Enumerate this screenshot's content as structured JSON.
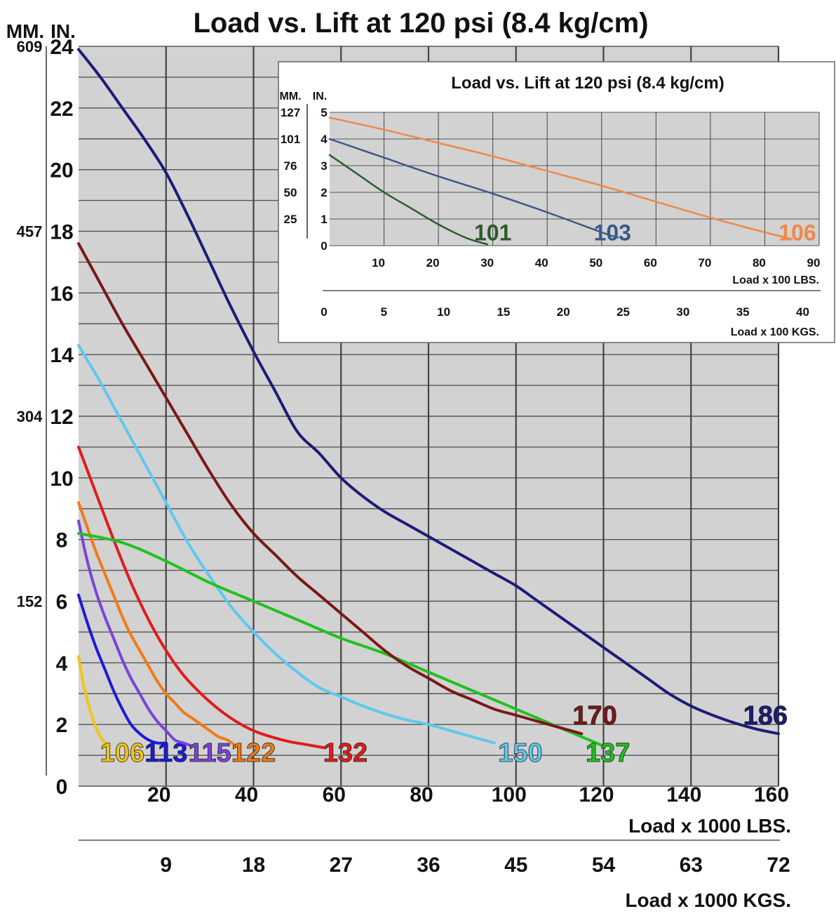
{
  "chart_data": [
    {
      "type": "line",
      "title": "Load vs. Lift at 120 psi (8.4 kg/cm)",
      "ylabel_in": "IN.",
      "ylabel_mm": "MM.",
      "xlabel_lbs": "Load x 1000 LBS.",
      "xlabel_kgs": "Load x 1000 KGS.",
      "xlim": [
        0,
        160
      ],
      "ylim": [
        0,
        24
      ],
      "grid": true,
      "y_ticks": [
        "0",
        "2",
        "4",
        "6",
        "8",
        "10",
        "12",
        "14",
        "16",
        "18",
        "20",
        "22",
        "24"
      ],
      "mm_ticks": [
        {
          "label": "609",
          "y": 24
        },
        {
          "label": "457",
          "y": 18
        },
        {
          "label": "304",
          "y": 12
        },
        {
          "label": "152",
          "y": 6
        }
      ],
      "x_ticks_lbs": [
        "20",
        "40",
        "60",
        "80",
        "100",
        "120",
        "140",
        "160"
      ],
      "x_ticks_kgs": [
        {
          "label": "9",
          "x": 20
        },
        {
          "label": "18",
          "x": 40
        },
        {
          "label": "27",
          "x": 60
        },
        {
          "label": "36",
          "x": 80
        },
        {
          "label": "45",
          "x": 100
        },
        {
          "label": "54",
          "x": 120
        },
        {
          "label": "63",
          "x": 140
        },
        {
          "label": "72",
          "x": 160
        }
      ],
      "series": [
        {
          "name": "106",
          "color": "#f2c418",
          "label_at": [
            10,
            0.8
          ],
          "x": [
            0,
            1,
            2,
            3,
            4,
            5,
            6,
            7
          ],
          "y": [
            4.2,
            3.4,
            2.8,
            2.3,
            1.9,
            1.6,
            1.4,
            1.3
          ]
        },
        {
          "name": "113",
          "color": "#1a1adf",
          "label_at": [
            20,
            0.8
          ],
          "x": [
            0,
            2,
            4,
            6,
            8,
            10,
            12,
            14,
            16,
            18,
            20
          ],
          "y": [
            6.2,
            5.3,
            4.5,
            3.8,
            3.1,
            2.5,
            2.0,
            1.7,
            1.5,
            1.4,
            1.4
          ]
        },
        {
          "name": "115",
          "color": "#7b43d9",
          "label_at": [
            30,
            0.8
          ],
          "x": [
            0,
            2,
            4,
            6,
            8,
            10,
            12,
            14,
            16,
            18,
            20,
            22,
            24,
            26
          ],
          "y": [
            8.6,
            7.3,
            6.3,
            5.5,
            4.8,
            4.1,
            3.5,
            3.0,
            2.5,
            2.1,
            1.8,
            1.5,
            1.4,
            1.3
          ]
        },
        {
          "name": "122",
          "color": "#f07a18",
          "label_at": [
            40,
            0.8
          ],
          "x": [
            0,
            2,
            4,
            6,
            8,
            10,
            12,
            14,
            16,
            18,
            20,
            22,
            24,
            26,
            28,
            30,
            32,
            34,
            36
          ],
          "y": [
            9.2,
            8.4,
            7.6,
            6.9,
            6.2,
            5.5,
            4.9,
            4.4,
            3.9,
            3.4,
            3.0,
            2.7,
            2.4,
            2.2,
            2.0,
            1.8,
            1.6,
            1.5,
            1.3
          ]
        },
        {
          "name": "132",
          "color": "#e01c1c",
          "label_at": [
            61,
            0.8
          ],
          "x": [
            0,
            4,
            8,
            12,
            16,
            20,
            24,
            28,
            32,
            36,
            40,
            44,
            48,
            52,
            56
          ],
          "y": [
            11.0,
            9.5,
            8.0,
            6.6,
            5.4,
            4.4,
            3.6,
            3.0,
            2.5,
            2.1,
            1.8,
            1.6,
            1.45,
            1.35,
            1.25
          ]
        },
        {
          "name": "150",
          "color": "#5ec8ee",
          "label_at": [
            101,
            0.8
          ],
          "x": [
            0,
            5,
            10,
            15,
            20,
            25,
            30,
            35,
            40,
            45,
            50,
            55,
            60,
            65,
            70,
            75,
            80,
            85,
            90,
            95
          ],
          "y": [
            14.3,
            13.1,
            11.8,
            10.5,
            9.2,
            7.9,
            6.8,
            5.8,
            5.0,
            4.3,
            3.7,
            3.2,
            2.9,
            2.6,
            2.35,
            2.15,
            2.0,
            1.8,
            1.6,
            1.4
          ]
        },
        {
          "name": "137",
          "color": "#1fc21f",
          "label_at": [
            121,
            0.8
          ],
          "x": [
            0,
            10,
            20,
            30,
            40,
            50,
            60,
            70,
            80,
            90,
            100,
            110,
            120
          ],
          "y": [
            8.2,
            7.9,
            7.3,
            6.6,
            6.0,
            5.4,
            4.8,
            4.3,
            3.7,
            3.1,
            2.5,
            1.9,
            1.3
          ]
        },
        {
          "name": "170",
          "color": "#7a1818",
          "label_at": [
            118,
            2.0
          ],
          "x": [
            0,
            5,
            10,
            15,
            20,
            25,
            30,
            35,
            40,
            45,
            50,
            55,
            60,
            65,
            70,
            75,
            80,
            85,
            90,
            95,
            100,
            105,
            110,
            115
          ],
          "y": [
            17.6,
            16.3,
            15.0,
            13.8,
            12.6,
            11.4,
            10.2,
            9.1,
            8.2,
            7.5,
            6.8,
            6.2,
            5.6,
            5.0,
            4.4,
            3.9,
            3.5,
            3.1,
            2.8,
            2.5,
            2.3,
            2.1,
            1.9,
            1.7
          ]
        },
        {
          "name": "186",
          "color": "#1c1c78",
          "label_at": [
            157,
            2.0
          ],
          "x": [
            0,
            5,
            10,
            15,
            20,
            25,
            30,
            35,
            40,
            45,
            50,
            55,
            60,
            65,
            70,
            75,
            80,
            85,
            90,
            95,
            100,
            105,
            110,
            115,
            120,
            125,
            130,
            135,
            140,
            145,
            150,
            155,
            160
          ],
          "y": [
            23.9,
            23.0,
            22.0,
            21.0,
            19.9,
            18.5,
            17.0,
            15.5,
            14.1,
            12.8,
            11.5,
            10.8,
            10.0,
            9.4,
            8.9,
            8.5,
            8.1,
            7.7,
            7.3,
            6.9,
            6.5,
            6.0,
            5.5,
            5.0,
            4.5,
            4.0,
            3.5,
            3.0,
            2.6,
            2.3,
            2.05,
            1.85,
            1.7
          ]
        }
      ]
    },
    {
      "type": "line",
      "title": "Load vs. Lift at 120 psi (8.4 kg/cm)",
      "ylabel_in": "IN.",
      "ylabel_mm": "MM.",
      "xlabel_lbs": "Load x 100 LBS.",
      "xlabel_kgs": "Load x 100 KGS.",
      "xlim": [
        0,
        90
      ],
      "ylim": [
        0,
        5
      ],
      "grid": true,
      "y_ticks": [
        "0",
        "1",
        "2",
        "3",
        "4",
        "5"
      ],
      "mm_ticks": [
        {
          "label": "127",
          "y": 5
        },
        {
          "label": "101",
          "y": 4
        },
        {
          "label": "76",
          "y": 3
        },
        {
          "label": "50",
          "y": 2
        },
        {
          "label": "25",
          "y": 1
        }
      ],
      "x_ticks_lbs": [
        "10",
        "20",
        "30",
        "40",
        "50",
        "60",
        "70",
        "80",
        "90"
      ],
      "x_ticks_kgs": [
        {
          "label": "0",
          "x": 0
        },
        {
          "label": "5",
          "x": 11
        },
        {
          "label": "10",
          "x": 22
        },
        {
          "label": "15",
          "x": 33
        },
        {
          "label": "20",
          "x": 44
        },
        {
          "label": "25",
          "x": 55
        },
        {
          "label": "30",
          "x": 66
        },
        {
          "label": "35",
          "x": 77
        },
        {
          "label": "40",
          "x": 88
        }
      ],
      "series": [
        {
          "name": "101",
          "color": "#2d5a2d",
          "label_at": [
            30,
            0.2
          ],
          "x": [
            0,
            5,
            10,
            15,
            20,
            25,
            29
          ],
          "y": [
            3.4,
            2.7,
            2.0,
            1.4,
            0.8,
            0.3,
            0.05
          ]
        },
        {
          "name": "103",
          "color": "#3a5a86",
          "label_at": [
            52,
            0.2
          ],
          "x": [
            0,
            10,
            20,
            30,
            40,
            50,
            53
          ],
          "y": [
            4.0,
            3.3,
            2.6,
            1.95,
            1.25,
            0.5,
            0.3
          ]
        },
        {
          "name": "106",
          "color": "#f0884a",
          "label_at": [
            86,
            0.2
          ],
          "x": [
            0,
            10,
            20,
            30,
            40,
            50,
            60,
            70,
            80,
            85
          ],
          "y": [
            4.8,
            4.35,
            3.85,
            3.35,
            2.8,
            2.25,
            1.65,
            1.05,
            0.5,
            0.25
          ]
        }
      ]
    }
  ]
}
